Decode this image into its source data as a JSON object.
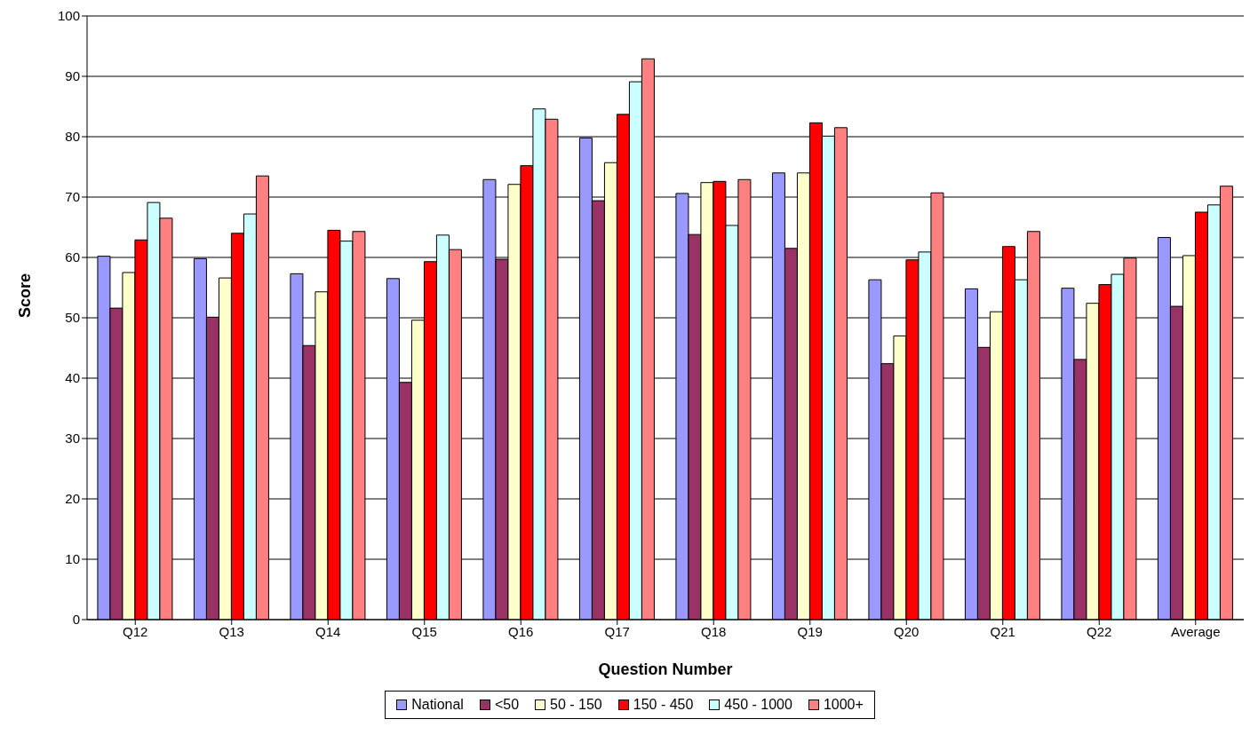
{
  "chart_data": {
    "type": "bar",
    "xlabel": "Question Number",
    "ylabel": "Score",
    "categories": [
      "Q12",
      "Q13",
      "Q14",
      "Q15",
      "Q16",
      "Q17",
      "Q18",
      "Q19",
      "Q20",
      "Q21",
      "Q22",
      "Average"
    ],
    "series": [
      {
        "name": "National",
        "color": "#9999ff",
        "values": [
          60.2,
          59.8,
          57.3,
          56.5,
          72.9,
          79.8,
          70.6,
          74.0,
          56.3,
          54.8,
          54.9,
          63.3
        ]
      },
      {
        "name": "<50",
        "color": "#993366",
        "values": [
          51.6,
          50.1,
          45.4,
          39.3,
          59.7,
          69.4,
          63.8,
          61.5,
          42.4,
          45.1,
          43.1,
          51.9
        ]
      },
      {
        "name": "50 - 150",
        "color": "#ffffcc",
        "values": [
          57.5,
          56.6,
          54.3,
          49.6,
          72.1,
          75.7,
          72.4,
          74.0,
          47.0,
          51.0,
          52.4,
          60.3
        ]
      },
      {
        "name": "150 - 450",
        "color": "#ff0000",
        "values": [
          62.9,
          64.0,
          64.5,
          59.3,
          75.2,
          83.7,
          72.6,
          82.3,
          59.6,
          61.8,
          55.5,
          67.5
        ]
      },
      {
        "name": "450 - 1000",
        "color": "#ccffff",
        "values": [
          69.1,
          67.2,
          62.7,
          63.7,
          84.6,
          89.1,
          65.3,
          80.1,
          60.9,
          56.3,
          57.2,
          68.7
        ]
      },
      {
        "name": "1000+",
        "color": "#ff8080",
        "values": [
          66.5,
          73.5,
          64.3,
          61.3,
          82.9,
          92.9,
          72.9,
          81.5,
          70.7,
          64.3,
          59.9,
          71.8
        ]
      }
    ],
    "ylim": [
      0,
      100
    ],
    "yticks": [
      0,
      10,
      20,
      30,
      40,
      50,
      60,
      70,
      80,
      90,
      100
    ],
    "grid": "y",
    "legend": "bottom"
  }
}
